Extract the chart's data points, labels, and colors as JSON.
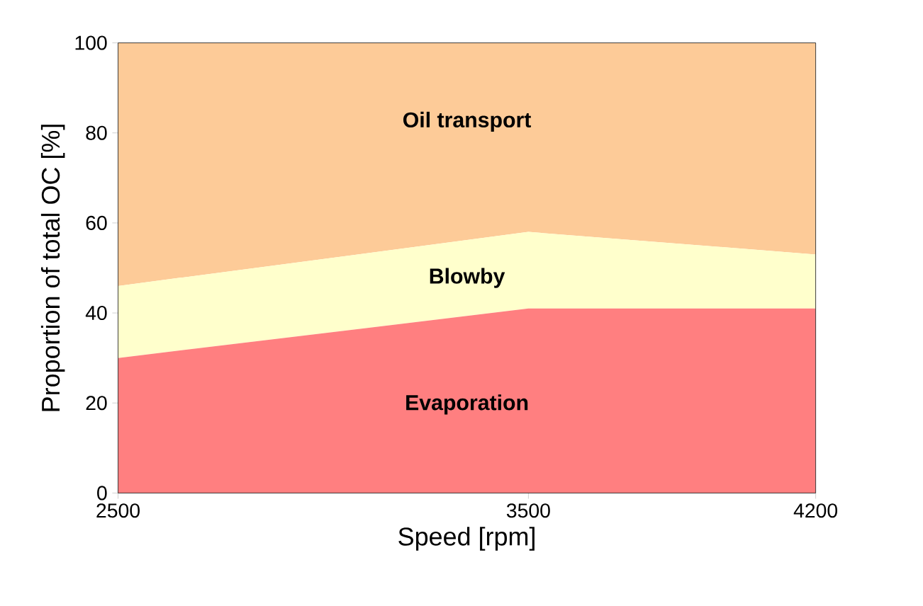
{
  "chart_data": {
    "type": "area",
    "stacked": true,
    "xlabel": "Speed [rpm]",
    "ylabel": "Proportion of total OC [%]",
    "x": [
      2500,
      3500,
      4200
    ],
    "xlim": [
      2500,
      4200
    ],
    "xticks": [
      2500,
      3500,
      4200
    ],
    "ylim": [
      0,
      100
    ],
    "yticks": [
      0,
      20,
      40,
      60,
      80,
      100
    ],
    "grid": false,
    "series": [
      {
        "name": "Evaporation",
        "color": "#ff7f80",
        "values": [
          30,
          41,
          41
        ]
      },
      {
        "name": "Blowby",
        "color": "#ffffcc",
        "values": [
          16,
          17,
          12
        ]
      },
      {
        "name": "Oil transport",
        "color": "#fdcb98",
        "values": [
          54,
          42,
          47
        ]
      }
    ]
  }
}
